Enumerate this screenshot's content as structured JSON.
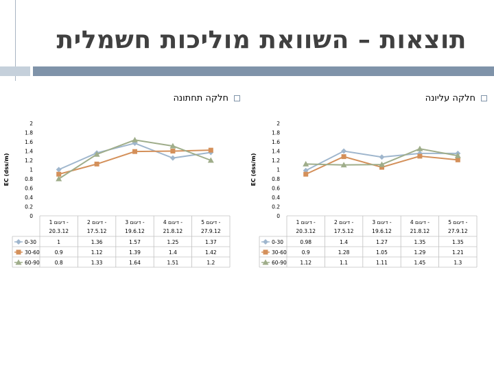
{
  "slide": {
    "title": "תוצאות – השוואת מוליכות חשמלית",
    "bullet_left": "חלקה תחתונה",
    "bullet_right": "חלקה עליונה"
  },
  "chart_data": [
    {
      "type": "line",
      "ylabel": "EC (dss/m)",
      "ylim": [
        0,
        2
      ],
      "yticks": [
        "0",
        "0.2",
        "0.4",
        "0.6",
        "0.8",
        "1",
        "1.2",
        "1.4",
        "1.6",
        "1.8",
        "2"
      ],
      "categories": [
        [
          "דיגום 1 -",
          "20.3.12"
        ],
        [
          "דיגום 2 -",
          "17.5.12"
        ],
        [
          "דיגום 3 -",
          "19.6.12"
        ],
        [
          "דיגום 4 -",
          "21.8.12"
        ],
        [
          "דיגום 5 -",
          "27.9.12"
        ]
      ],
      "series": [
        {
          "name": "0-30",
          "color": "#9fb6cd",
          "marker": "diamond",
          "values": [
            1,
            1.36,
            1.57,
            1.25,
            1.37
          ],
          "labels": [
            "1",
            "1.36",
            "1.57",
            "1.25",
            "1.37"
          ]
        },
        {
          "name": "30-60",
          "color": "#d4905a",
          "marker": "square",
          "values": [
            0.9,
            1.12,
            1.39,
            1.4,
            1.42
          ],
          "labels": [
            "0.9",
            "1.12",
            "1.39",
            "1.4",
            "1.42"
          ]
        },
        {
          "name": "60-90",
          "color": "#9fad8a",
          "marker": "triangle",
          "values": [
            0.8,
            1.33,
            1.64,
            1.51,
            1.2
          ],
          "labels": [
            "0.8",
            "1.33",
            "1.64",
            "1.51",
            "1.2"
          ]
        }
      ]
    },
    {
      "type": "line",
      "ylabel": "EC (dss/m)",
      "ylim": [
        0,
        2
      ],
      "yticks": [
        "0",
        "0.2",
        "0.4",
        "0.6",
        "0.8",
        "1",
        "1.2",
        "1.4",
        "1.6",
        "1.8",
        "2"
      ],
      "categories": [
        [
          "דיגום 1 -",
          "20.3.12"
        ],
        [
          "דיגום 2 -",
          "17.5.12"
        ],
        [
          "דיגום 3 -",
          "19.6.12"
        ],
        [
          "דיגום 4 -",
          "21.8.12"
        ],
        [
          "דיגום 5 -",
          "27.9.12"
        ]
      ],
      "series": [
        {
          "name": "0-30",
          "color": "#9fb6cd",
          "marker": "diamond",
          "values": [
            0.98,
            1.4,
            1.27,
            1.35,
            1.35
          ],
          "labels": [
            "0.98",
            "1.4",
            "1.27",
            "1.35",
            "1.35"
          ]
        },
        {
          "name": "30-60",
          "color": "#d4905a",
          "marker": "square",
          "values": [
            0.9,
            1.28,
            1.05,
            1.29,
            1.21
          ],
          "labels": [
            "0.9",
            "1.28",
            "1.05",
            "1.29",
            "1.21"
          ]
        },
        {
          "name": "60-90",
          "color": "#9fad8a",
          "marker": "triangle",
          "values": [
            1.12,
            1.1,
            1.11,
            1.45,
            1.3
          ],
          "labels": [
            "1.12",
            "1.1",
            "1.11",
            "1.45",
            "1.3"
          ]
        }
      ]
    }
  ]
}
